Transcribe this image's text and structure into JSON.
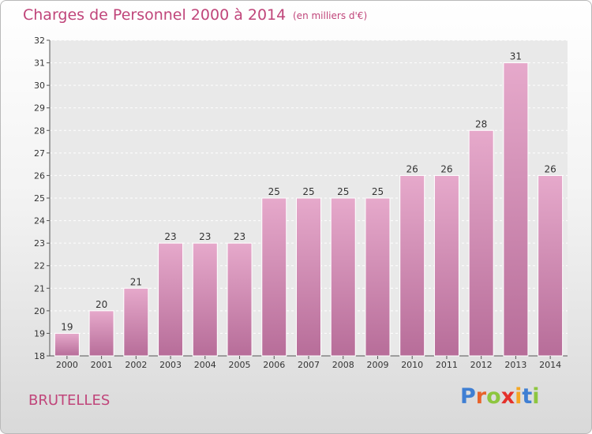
{
  "title": "Charges de Personnel 2000 à 2014",
  "subtitle": "(en milliers d'€)",
  "place": "BRUTELLES",
  "logo": {
    "letters": [
      "P",
      "r",
      "o",
      "x",
      "i",
      "t",
      "i"
    ],
    "colors": [
      "#3f7fd3",
      "#e8632b",
      "#8dc63f",
      "#e4312b",
      "#f5a623",
      "#3f7fd3",
      "#8dc63f"
    ]
  },
  "colors": {
    "bar_light": "#e6a9cb",
    "bar_dark": "#b76d99",
    "title": "#c0457a"
  },
  "chart_data": {
    "type": "bar",
    "title": "Charges de Personnel 2000 à 2014",
    "subtitle": "(en milliers d'€)",
    "categories": [
      "2000",
      "2001",
      "2002",
      "2003",
      "2004",
      "2005",
      "2006",
      "2007",
      "2008",
      "2009",
      "2010",
      "2011",
      "2012",
      "2013",
      "2014"
    ],
    "values": [
      19,
      20,
      21,
      23,
      23,
      23,
      25,
      25,
      25,
      25,
      26,
      26,
      28,
      31,
      26
    ],
    "ylim": [
      18,
      32
    ],
    "yticks": [
      18,
      19,
      20,
      21,
      22,
      23,
      24,
      25,
      26,
      27,
      28,
      29,
      30,
      31,
      32
    ],
    "grid": true,
    "data_labels": true
  }
}
